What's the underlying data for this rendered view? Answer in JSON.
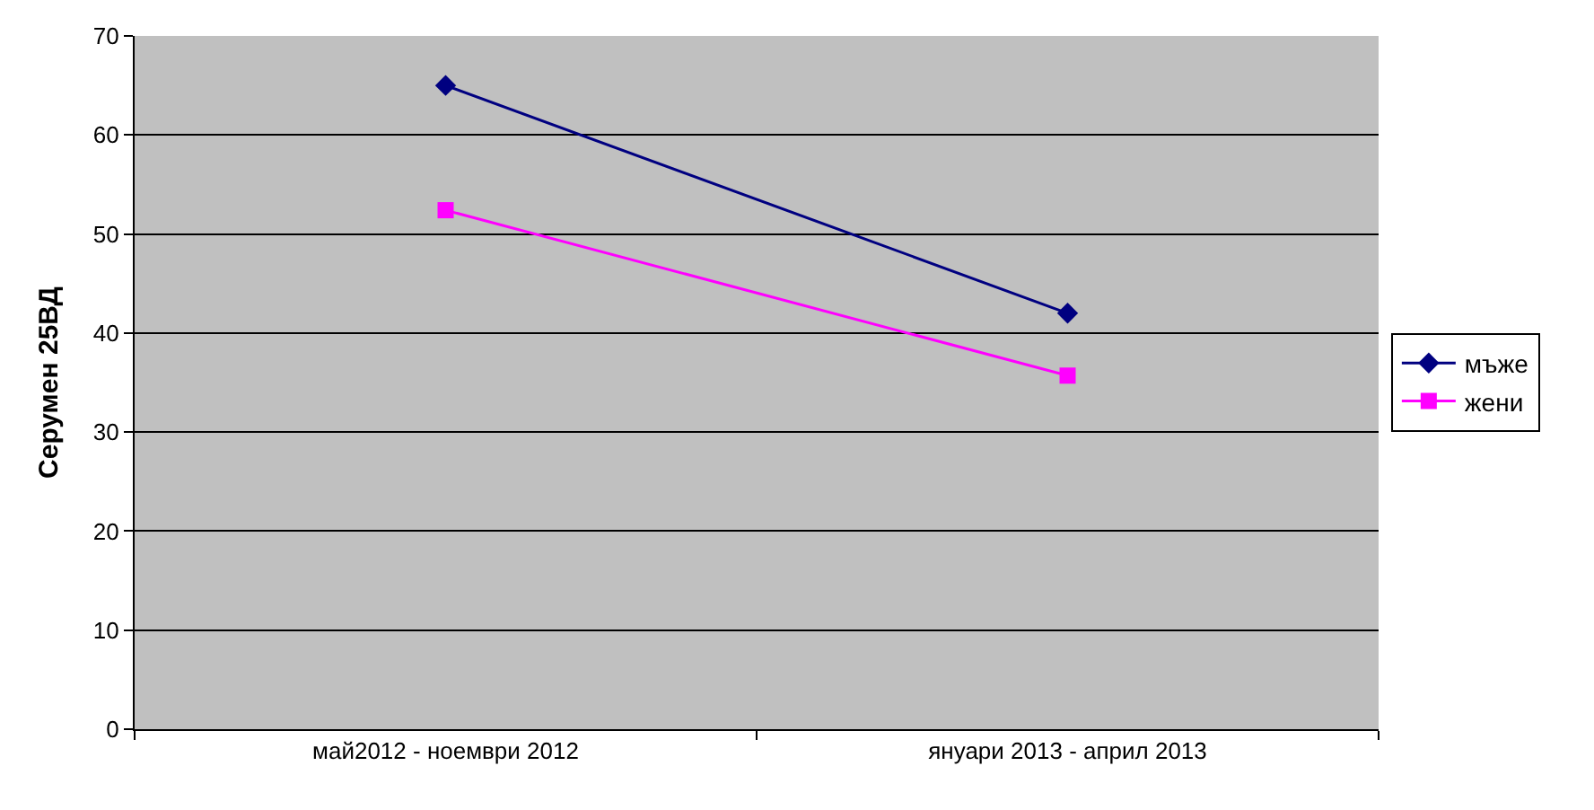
{
  "chart_data": {
    "type": "line",
    "ylabel": "Серумен 25ВД",
    "categories": [
      "май2012 - ноември 2012",
      "януари 2013 - април 2013"
    ],
    "series": [
      {
        "name": "мъже",
        "color": "#000080",
        "values": [
          65,
          42
        ],
        "marker": "diamond"
      },
      {
        "name": "жени",
        "color": "#ff00ff",
        "values": [
          52.4,
          35.7
        ],
        "marker": "square"
      }
    ],
    "ylim": [
      0,
      70
    ],
    "yticks": [
      0,
      10,
      20,
      30,
      40,
      50,
      60,
      70
    ],
    "grid": "y",
    "legend": "right",
    "line_style": "solid"
  }
}
